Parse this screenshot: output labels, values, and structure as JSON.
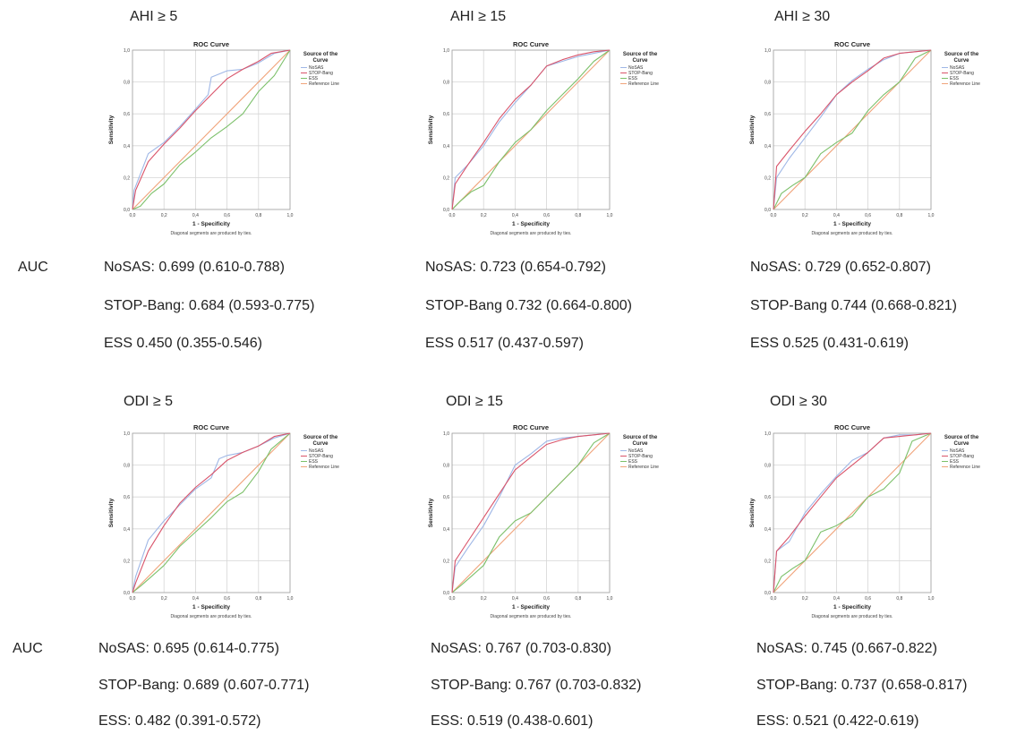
{
  "auc_label": "AUC",
  "chart_common": {
    "title": "ROC Curve",
    "xlabel": "1 - Specificity",
    "ylabel": "Sensitivity",
    "footnote": "Diagonal segments are produced by ties.",
    "legend_title_line1": "Source of the",
    "legend_title_line2": "Curve",
    "ticks": [
      "0,0",
      "0,2",
      "0,4",
      "0,6",
      "0,8",
      "1,0"
    ],
    "colors": {
      "NoSAS": "#9fb7e6",
      "STOP-Bang": "#d9546a",
      "ESS": "#7cc06a",
      "Reference Line": "#f0a37a",
      "grid": "#d6d6d6",
      "frame": "#9a9a9a"
    }
  },
  "panels": [
    {
      "heading": "AHI ≥ 5",
      "auc": [
        "NoSAS: 0.699 (0.610-0.788)",
        "STOP-Bang: 0.684 (0.593-0.775)",
        "ESS 0.450 (0.355-0.546)"
      ]
    },
    {
      "heading": "AHI ≥ 15",
      "auc": [
        "NoSAS: 0.723 (0.654-0.792)",
        "STOP-Bang 0.732 (0.664-0.800)",
        "ESS 0.517 (0.437-0.597)"
      ]
    },
    {
      "heading": "AHI ≥ 30",
      "auc": [
        "NoSAS: 0.729 (0.652-0.807)",
        "STOP-Bang 0.744 (0.668-0.821)",
        "ESS 0.525 (0.431-0.619)"
      ]
    },
    {
      "heading": "ODI ≥ 5",
      "auc": [
        "NoSAS: 0.695 (0.614-0.775)",
        "STOP-Bang: 0.689 (0.607-0.771)",
        "ESS: 0.482 (0.391-0.572)"
      ]
    },
    {
      "heading": "ODI ≥ 15",
      "auc": [
        "NoSAS: 0.767 (0.703-0.830)",
        "STOP-Bang: 0.767 (0.703-0.832)",
        "ESS: 0.519 (0.438-0.601)"
      ]
    },
    {
      "heading": "ODI ≥ 30",
      "auc": [
        "NoSAS: 0.745 (0.667-0.822)",
        "STOP-Bang: 0.737 (0.658-0.817)",
        "ESS: 0.521 (0.422-0.619)"
      ]
    }
  ],
  "chart_data": [
    {
      "type": "line",
      "title": "ROC Curve",
      "xlabel": "1 - Specificity",
      "ylabel": "Sensitivity",
      "xlim": [
        0,
        1
      ],
      "ylim": [
        0,
        1
      ],
      "grid": true,
      "legend": "right",
      "series": [
        {
          "name": "NoSAS",
          "x": [
            0,
            0.01,
            0.1,
            0.2,
            0.3,
            0.4,
            0.48,
            0.5,
            0.6,
            0.7,
            0.8,
            0.9,
            1.0
          ],
          "y": [
            0,
            0.12,
            0.35,
            0.42,
            0.52,
            0.63,
            0.72,
            0.83,
            0.87,
            0.88,
            0.92,
            0.98,
            1.0
          ]
        },
        {
          "name": "STOP-Bang",
          "x": [
            0,
            0.02,
            0.1,
            0.2,
            0.3,
            0.4,
            0.5,
            0.6,
            0.7,
            0.8,
            0.88,
            1.0
          ],
          "y": [
            0,
            0.12,
            0.3,
            0.41,
            0.51,
            0.62,
            0.72,
            0.82,
            0.88,
            0.93,
            0.98,
            1.0
          ]
        },
        {
          "name": "ESS",
          "x": [
            0,
            0.05,
            0.12,
            0.2,
            0.3,
            0.4,
            0.5,
            0.6,
            0.7,
            0.8,
            0.9,
            1.0
          ],
          "y": [
            0,
            0.02,
            0.1,
            0.16,
            0.28,
            0.36,
            0.45,
            0.52,
            0.6,
            0.74,
            0.84,
            1.0
          ]
        },
        {
          "name": "Reference Line",
          "x": [
            0,
            1
          ],
          "y": [
            0,
            1
          ]
        }
      ]
    },
    {
      "type": "line",
      "title": "ROC Curve",
      "xlabel": "1 - Specificity",
      "ylabel": "Sensitivity",
      "xlim": [
        0,
        1
      ],
      "ylim": [
        0,
        1
      ],
      "grid": true,
      "legend": "right",
      "series": [
        {
          "name": "NoSAS",
          "x": [
            0,
            0.02,
            0.1,
            0.2,
            0.3,
            0.4,
            0.5,
            0.6,
            0.7,
            0.8,
            0.9,
            1.0
          ],
          "y": [
            0,
            0.2,
            0.28,
            0.4,
            0.55,
            0.67,
            0.78,
            0.9,
            0.93,
            0.96,
            0.98,
            1.0
          ]
        },
        {
          "name": "STOP-Bang",
          "x": [
            0,
            0.02,
            0.1,
            0.2,
            0.3,
            0.4,
            0.5,
            0.6,
            0.7,
            0.8,
            0.9,
            1.0
          ],
          "y": [
            0,
            0.16,
            0.28,
            0.42,
            0.57,
            0.69,
            0.78,
            0.9,
            0.94,
            0.97,
            0.99,
            1.0
          ]
        },
        {
          "name": "ESS",
          "x": [
            0,
            0.05,
            0.12,
            0.2,
            0.3,
            0.4,
            0.5,
            0.6,
            0.7,
            0.8,
            0.9,
            1.0
          ],
          "y": [
            0,
            0.05,
            0.11,
            0.15,
            0.3,
            0.42,
            0.5,
            0.62,
            0.72,
            0.82,
            0.93,
            1.0
          ]
        },
        {
          "name": "Reference Line",
          "x": [
            0,
            1
          ],
          "y": [
            0,
            1
          ]
        }
      ]
    },
    {
      "type": "line",
      "title": "ROC Curve",
      "xlabel": "1 - Specificity",
      "ylabel": "Sensitivity",
      "xlim": [
        0,
        1
      ],
      "ylim": [
        0,
        1
      ],
      "grid": true,
      "legend": "right",
      "series": [
        {
          "name": "NoSAS",
          "x": [
            0,
            0.02,
            0.1,
            0.2,
            0.3,
            0.4,
            0.5,
            0.6,
            0.7,
            0.8,
            0.9,
            1.0
          ],
          "y": [
            0,
            0.2,
            0.32,
            0.45,
            0.58,
            0.72,
            0.81,
            0.88,
            0.94,
            0.98,
            0.99,
            1.0
          ]
        },
        {
          "name": "STOP-Bang",
          "x": [
            0,
            0.02,
            0.1,
            0.2,
            0.3,
            0.4,
            0.5,
            0.6,
            0.7,
            0.8,
            0.9,
            1.0
          ],
          "y": [
            0,
            0.27,
            0.37,
            0.49,
            0.6,
            0.72,
            0.8,
            0.87,
            0.95,
            0.98,
            0.99,
            1.0
          ]
        },
        {
          "name": "ESS",
          "x": [
            0,
            0.05,
            0.12,
            0.2,
            0.3,
            0.4,
            0.5,
            0.6,
            0.7,
            0.8,
            0.9,
            1.0
          ],
          "y": [
            0,
            0.1,
            0.15,
            0.2,
            0.35,
            0.42,
            0.48,
            0.62,
            0.72,
            0.8,
            0.95,
            1.0
          ]
        },
        {
          "name": "Reference Line",
          "x": [
            0,
            1
          ],
          "y": [
            0,
            1
          ]
        }
      ]
    },
    {
      "type": "line",
      "title": "ROC Curve",
      "xlabel": "1 - Specificity",
      "ylabel": "Sensitivity",
      "xlim": [
        0,
        1
      ],
      "ylim": [
        0,
        1
      ],
      "grid": true,
      "legend": "right",
      "series": [
        {
          "name": "NoSAS",
          "x": [
            0,
            0.02,
            0.1,
            0.2,
            0.3,
            0.4,
            0.5,
            0.55,
            0.6,
            0.7,
            0.8,
            0.9,
            1.0
          ],
          "y": [
            0,
            0.1,
            0.33,
            0.45,
            0.55,
            0.65,
            0.72,
            0.84,
            0.86,
            0.88,
            0.92,
            0.97,
            1.0
          ]
        },
        {
          "name": "STOP-Bang",
          "x": [
            0,
            0.02,
            0.1,
            0.2,
            0.3,
            0.4,
            0.5,
            0.6,
            0.7,
            0.8,
            0.9,
            1.0
          ],
          "y": [
            0,
            0.06,
            0.26,
            0.42,
            0.56,
            0.66,
            0.74,
            0.83,
            0.88,
            0.92,
            0.98,
            1.0
          ]
        },
        {
          "name": "ESS",
          "x": [
            0,
            0.05,
            0.12,
            0.2,
            0.3,
            0.4,
            0.5,
            0.6,
            0.7,
            0.8,
            0.88,
            1.0
          ],
          "y": [
            0,
            0.04,
            0.1,
            0.17,
            0.29,
            0.38,
            0.47,
            0.57,
            0.63,
            0.76,
            0.9,
            1.0
          ]
        },
        {
          "name": "Reference Line",
          "x": [
            0,
            1
          ],
          "y": [
            0,
            1
          ]
        }
      ]
    },
    {
      "type": "line",
      "title": "ROC Curve",
      "xlabel": "1 - Specificity",
      "ylabel": "Sensitivity",
      "xlim": [
        0,
        1
      ],
      "ylim": [
        0,
        1
      ],
      "grid": true,
      "legend": "right",
      "series": [
        {
          "name": "NoSAS",
          "x": [
            0,
            0.02,
            0.1,
            0.2,
            0.3,
            0.4,
            0.5,
            0.6,
            0.7,
            0.8,
            0.9,
            1.0
          ],
          "y": [
            0,
            0.16,
            0.28,
            0.42,
            0.6,
            0.8,
            0.87,
            0.95,
            0.97,
            0.98,
            0.99,
            1.0
          ]
        },
        {
          "name": "STOP-Bang",
          "x": [
            0,
            0.02,
            0.1,
            0.2,
            0.3,
            0.4,
            0.5,
            0.6,
            0.7,
            0.8,
            0.9,
            1.0
          ],
          "y": [
            0,
            0.2,
            0.32,
            0.47,
            0.62,
            0.77,
            0.85,
            0.93,
            0.96,
            0.98,
            0.99,
            1.0
          ]
        },
        {
          "name": "ESS",
          "x": [
            0,
            0.05,
            0.12,
            0.2,
            0.3,
            0.4,
            0.5,
            0.6,
            0.7,
            0.8,
            0.9,
            1.0
          ],
          "y": [
            0,
            0.04,
            0.1,
            0.17,
            0.35,
            0.45,
            0.5,
            0.6,
            0.7,
            0.8,
            0.94,
            1.0
          ]
        },
        {
          "name": "Reference Line",
          "x": [
            0,
            1
          ],
          "y": [
            0,
            1
          ]
        }
      ]
    },
    {
      "type": "line",
      "title": "ROC Curve",
      "xlabel": "1 - Specificity",
      "ylabel": "Sensitivity",
      "xlim": [
        0,
        1
      ],
      "ylim": [
        0,
        1
      ],
      "grid": true,
      "legend": "right",
      "series": [
        {
          "name": "NoSAS",
          "x": [
            0,
            0.02,
            0.1,
            0.2,
            0.3,
            0.4,
            0.5,
            0.6,
            0.7,
            0.8,
            0.9,
            1.0
          ],
          "y": [
            0,
            0.26,
            0.32,
            0.5,
            0.62,
            0.73,
            0.83,
            0.88,
            0.97,
            0.99,
            0.99,
            1.0
          ]
        },
        {
          "name": "STOP-Bang",
          "x": [
            0,
            0.02,
            0.1,
            0.2,
            0.3,
            0.4,
            0.5,
            0.6,
            0.7,
            0.8,
            0.9,
            1.0
          ],
          "y": [
            0,
            0.26,
            0.35,
            0.48,
            0.6,
            0.72,
            0.8,
            0.88,
            0.97,
            0.98,
            0.99,
            1.0
          ]
        },
        {
          "name": "ESS",
          "x": [
            0,
            0.05,
            0.12,
            0.2,
            0.3,
            0.4,
            0.5,
            0.6,
            0.7,
            0.8,
            0.88,
            1.0
          ],
          "y": [
            0,
            0.1,
            0.15,
            0.2,
            0.38,
            0.42,
            0.48,
            0.6,
            0.65,
            0.75,
            0.95,
            1.0
          ]
        },
        {
          "name": "Reference Line",
          "x": [
            0,
            1
          ],
          "y": [
            0,
            1
          ]
        }
      ]
    }
  ]
}
